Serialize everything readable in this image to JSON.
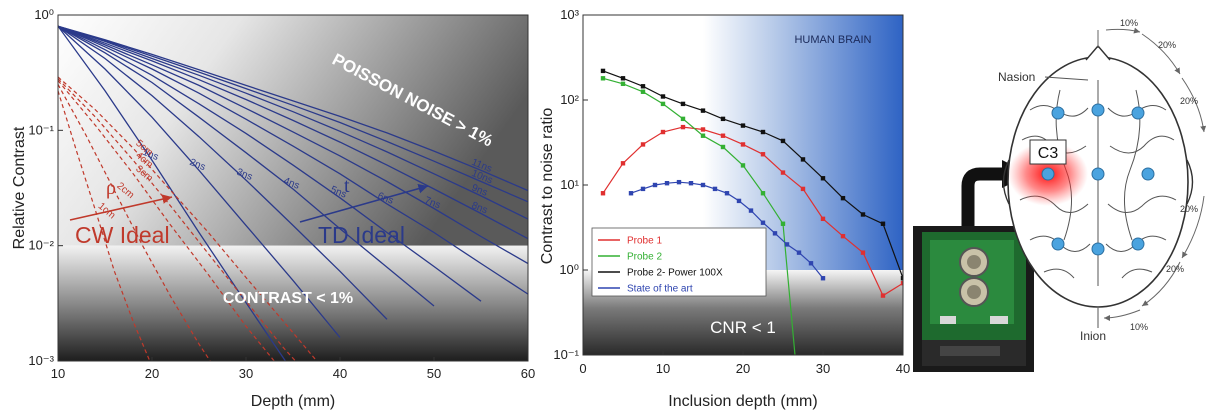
{
  "colors": {
    "td_curve": "#2b3a8a",
    "cw_curve": "#c0392b",
    "probe1": "#e03030",
    "probe2": "#33b033",
    "probe2_power": "#111111",
    "state_of_art": "#2f45b0",
    "human_brain_region": "#3a6fd0"
  },
  "chart_data": [
    {
      "type": "line",
      "xlabel": "Depth (mm)",
      "ylabel": "Relative Contrast",
      "xlim": [
        10,
        60
      ],
      "ylim": [
        0.001,
        1
      ],
      "y_scale": "log",
      "x_ticks": [
        "10",
        "20",
        "30",
        "40",
        "50",
        "60"
      ],
      "y_ticks": [
        "10⁻³",
        "10⁻²",
        "10⁻¹",
        "10⁰"
      ],
      "region_labels": {
        "top": "POISSON NOISE > 1%",
        "bottom": "CONTRAST < 1%"
      },
      "group_labels": {
        "cw": "CW Ideal",
        "td": "TD Ideal",
        "cw_symbol": "ρ",
        "td_symbol": "t"
      },
      "td_series": [
        {
          "name": "1ns",
          "x": [
            10,
            15,
            20,
            25,
            30,
            35
          ],
          "y": [
            0.8,
            0.22,
            0.055,
            0.013,
            0.0032,
            0.0008
          ]
        },
        {
          "name": "2ns",
          "x": [
            10,
            15,
            20,
            25,
            30,
            35,
            40
          ],
          "y": [
            0.8,
            0.34,
            0.13,
            0.045,
            0.015,
            0.005,
            0.0016
          ]
        },
        {
          "name": "3ns",
          "x": [
            10,
            15,
            20,
            25,
            30,
            35,
            40,
            45
          ],
          "y": [
            0.8,
            0.42,
            0.2,
            0.088,
            0.037,
            0.015,
            0.006,
            0.0023
          ]
        },
        {
          "name": "4ns",
          "x": [
            10,
            15,
            20,
            25,
            30,
            35,
            40,
            45,
            50
          ],
          "y": [
            0.8,
            0.47,
            0.26,
            0.13,
            0.064,
            0.031,
            0.014,
            0.0065,
            0.003
          ]
        },
        {
          "name": "5ns",
          "x": [
            10,
            15,
            20,
            25,
            30,
            35,
            40,
            45,
            50,
            55
          ],
          "y": [
            0.8,
            0.5,
            0.3,
            0.17,
            0.094,
            0.05,
            0.026,
            0.013,
            0.0066,
            0.0033
          ]
        },
        {
          "name": "6ns",
          "x": [
            10,
            15,
            20,
            25,
            30,
            35,
            40,
            45,
            50,
            55,
            60
          ],
          "y": [
            0.8,
            0.53,
            0.34,
            0.21,
            0.125,
            0.073,
            0.042,
            0.023,
            0.013,
            0.007,
            0.0038
          ]
        },
        {
          "name": "7ns",
          "x": [
            10,
            15,
            20,
            25,
            30,
            35,
            40,
            45,
            50,
            55,
            60
          ],
          "y": [
            0.8,
            0.55,
            0.37,
            0.245,
            0.155,
            0.097,
            0.06,
            0.036,
            0.021,
            0.012,
            0.007
          ]
        },
        {
          "name": "8ns",
          "x": [
            10,
            15,
            20,
            25,
            30,
            35,
            40,
            45,
            50,
            55,
            60
          ],
          "y": [
            0.8,
            0.57,
            0.4,
            0.275,
            0.185,
            0.122,
            0.079,
            0.05,
            0.031,
            0.019,
            0.0115
          ]
        },
        {
          "name": "9ns",
          "x": [
            10,
            15,
            20,
            25,
            30,
            35,
            40,
            45,
            50,
            55,
            60
          ],
          "y": [
            0.8,
            0.59,
            0.42,
            0.3,
            0.21,
            0.145,
            0.098,
            0.065,
            0.042,
            0.027,
            0.017
          ]
        },
        {
          "name": "10ns",
          "x": [
            10,
            15,
            20,
            25,
            30,
            35,
            40,
            45,
            50,
            55,
            60
          ],
          "y": [
            0.8,
            0.6,
            0.44,
            0.32,
            0.23,
            0.165,
            0.117,
            0.08,
            0.054,
            0.036,
            0.024
          ]
        },
        {
          "name": "11ns",
          "x": [
            10,
            15,
            20,
            25,
            30,
            35,
            40,
            45,
            50,
            55,
            60
          ],
          "y": [
            0.8,
            0.61,
            0.455,
            0.335,
            0.245,
            0.18,
            0.132,
            0.095,
            0.066,
            0.045,
            0.03
          ]
        }
      ],
      "cw_series": [
        {
          "name": "1cm",
          "x": [
            10,
            12,
            14,
            16,
            18,
            20,
            22
          ],
          "y": [
            0.22,
            0.065,
            0.02,
            0.006,
            0.0022,
            0.0009,
            0.0004
          ]
        },
        {
          "name": "2cm",
          "x": [
            10,
            13,
            16,
            19,
            22,
            25,
            28
          ],
          "y": [
            0.25,
            0.09,
            0.03,
            0.01,
            0.0036,
            0.0014,
            0.0006
          ]
        },
        {
          "name": "3cm",
          "x": [
            10,
            14,
            18,
            22,
            26,
            30,
            33
          ],
          "y": [
            0.27,
            0.11,
            0.042,
            0.015,
            0.0056,
            0.002,
            0.001
          ]
        },
        {
          "name": "4cm",
          "x": [
            10,
            14,
            18,
            22,
            26,
            30,
            34,
            37
          ],
          "y": [
            0.28,
            0.13,
            0.055,
            0.022,
            0.0085,
            0.0033,
            0.0013,
            0.0007
          ]
        },
        {
          "name": "5cm",
          "x": [
            10,
            14,
            18,
            22,
            26,
            30,
            34,
            38,
            41
          ],
          "y": [
            0.29,
            0.15,
            0.07,
            0.03,
            0.013,
            0.0053,
            0.0022,
            0.0009,
            0.0005
          ]
        }
      ]
    },
    {
      "type": "line",
      "xlabel": "Inclusion depth (mm)",
      "ylabel": "Contrast to noise ratio",
      "xlim": [
        0,
        40
      ],
      "ylim": [
        0.1,
        1000
      ],
      "y_scale": "log",
      "x_ticks": [
        "0",
        "10",
        "20",
        "30",
        "40"
      ],
      "y_ticks": [
        "10⁻¹",
        "10⁰",
        "10¹",
        "10²",
        "10³"
      ],
      "region_labels": {
        "top": "HUMAN BRAIN",
        "bottom": "CNR < 1"
      },
      "series": [
        {
          "name": "Probe 1",
          "x": [
            2.5,
            5,
            7.5,
            10,
            12.5,
            15,
            17.5,
            20,
            22.5,
            25,
            27.5,
            30,
            32.5,
            35,
            37.5,
            40
          ],
          "y": [
            8,
            18,
            30,
            42,
            48,
            45,
            38,
            30,
            23,
            14,
            9,
            4,
            2.5,
            1.6,
            0.5,
            0.7
          ]
        },
        {
          "name": "Probe 2",
          "x": [
            2.5,
            5,
            7.5,
            10,
            12.5,
            15,
            17.5,
            20,
            22.5,
            25,
            26.5
          ],
          "y": [
            180,
            155,
            125,
            90,
            60,
            38,
            28,
            17,
            8,
            3.5,
            0.1
          ]
        },
        {
          "name": "Probe 2- Power 100X",
          "x": [
            2.5,
            5,
            7.5,
            10,
            12.5,
            15,
            17.5,
            20,
            22.5,
            25,
            27.5,
            30,
            32.5,
            35,
            37.5,
            40
          ],
          "y": [
            220,
            180,
            145,
            110,
            90,
            75,
            60,
            50,
            42,
            33,
            20,
            12,
            7,
            4.5,
            3.5,
            0.8
          ]
        },
        {
          "name": "State of the art",
          "x": [
            6,
            7.5,
            9,
            10.5,
            12,
            13.5,
            15,
            16.5,
            18,
            19.5,
            21,
            22.5,
            24,
            25.5,
            27,
            28.5,
            30
          ],
          "y": [
            8,
            9,
            10,
            10.5,
            10.8,
            10.5,
            10,
            9,
            8,
            6.5,
            5,
            3.6,
            2.7,
            2,
            1.6,
            1.2,
            0.8
          ]
        }
      ]
    }
  ],
  "head_diagram": {
    "labels": {
      "nasion": "Nasion",
      "inion": "Inion",
      "electrode": "C3"
    },
    "arc_labels": [
      "10%",
      "20%",
      "20%",
      "20%",
      "20%",
      "10%"
    ]
  }
}
